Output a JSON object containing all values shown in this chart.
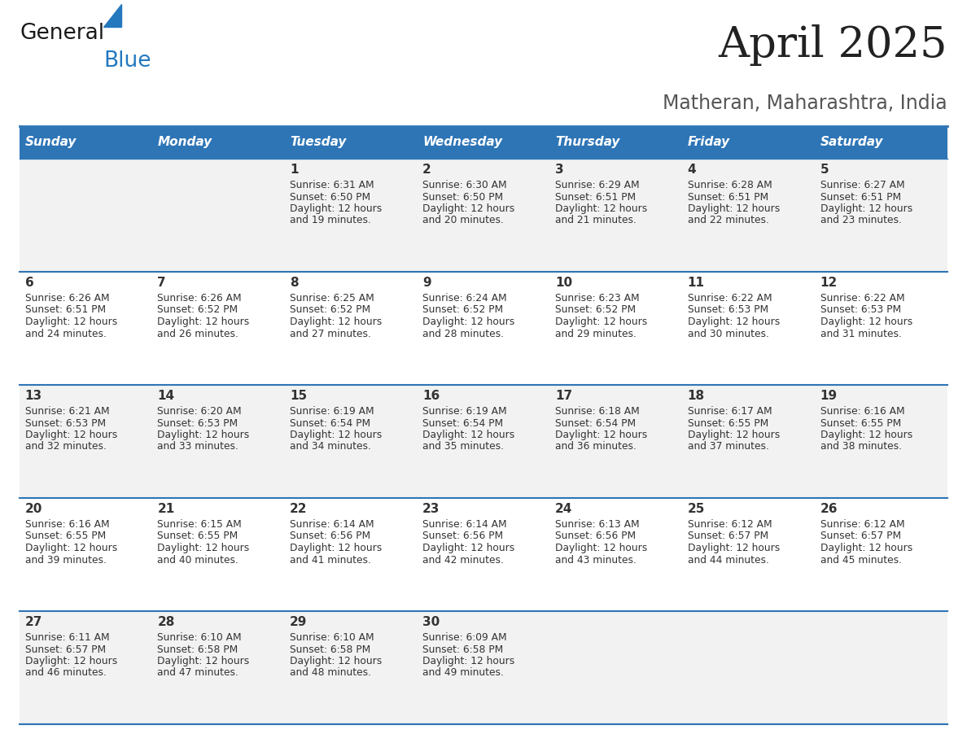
{
  "title": "April 2025",
  "subtitle": "Matheran, Maharashtra, India",
  "days_of_week": [
    "Sunday",
    "Monday",
    "Tuesday",
    "Wednesday",
    "Thursday",
    "Friday",
    "Saturday"
  ],
  "header_bg": "#2E75B6",
  "header_text": "#FFFFFF",
  "row_bg_odd": "#F2F2F2",
  "row_bg_even": "#FFFFFF",
  "cell_border_color": "#2E75B6",
  "text_color": "#333333",
  "title_color": "#222222",
  "subtitle_color": "#555555",
  "logo_text_color": "#1a1a1a",
  "logo_blue_color": "#2478BE",
  "calendar_data": [
    [
      {
        "day": "",
        "sunrise": "",
        "sunset": "",
        "daylight_min": 0
      },
      {
        "day": "",
        "sunrise": "",
        "sunset": "",
        "daylight_min": 0
      },
      {
        "day": "1",
        "sunrise": "6:31 AM",
        "sunset": "6:50 PM",
        "daylight_min": 19
      },
      {
        "day": "2",
        "sunrise": "6:30 AM",
        "sunset": "6:50 PM",
        "daylight_min": 20
      },
      {
        "day": "3",
        "sunrise": "6:29 AM",
        "sunset": "6:51 PM",
        "daylight_min": 21
      },
      {
        "day": "4",
        "sunrise": "6:28 AM",
        "sunset": "6:51 PM",
        "daylight_min": 22
      },
      {
        "day": "5",
        "sunrise": "6:27 AM",
        "sunset": "6:51 PM",
        "daylight_min": 23
      }
    ],
    [
      {
        "day": "6",
        "sunrise": "6:26 AM",
        "sunset": "6:51 PM",
        "daylight_min": 24
      },
      {
        "day": "7",
        "sunrise": "6:26 AM",
        "sunset": "6:52 PM",
        "daylight_min": 26
      },
      {
        "day": "8",
        "sunrise": "6:25 AM",
        "sunset": "6:52 PM",
        "daylight_min": 27
      },
      {
        "day": "9",
        "sunrise": "6:24 AM",
        "sunset": "6:52 PM",
        "daylight_min": 28
      },
      {
        "day": "10",
        "sunrise": "6:23 AM",
        "sunset": "6:52 PM",
        "daylight_min": 29
      },
      {
        "day": "11",
        "sunrise": "6:22 AM",
        "sunset": "6:53 PM",
        "daylight_min": 30
      },
      {
        "day": "12",
        "sunrise": "6:22 AM",
        "sunset": "6:53 PM",
        "daylight_min": 31
      }
    ],
    [
      {
        "day": "13",
        "sunrise": "6:21 AM",
        "sunset": "6:53 PM",
        "daylight_min": 32
      },
      {
        "day": "14",
        "sunrise": "6:20 AM",
        "sunset": "6:53 PM",
        "daylight_min": 33
      },
      {
        "day": "15",
        "sunrise": "6:19 AM",
        "sunset": "6:54 PM",
        "daylight_min": 34
      },
      {
        "day": "16",
        "sunrise": "6:19 AM",
        "sunset": "6:54 PM",
        "daylight_min": 35
      },
      {
        "day": "17",
        "sunrise": "6:18 AM",
        "sunset": "6:54 PM",
        "daylight_min": 36
      },
      {
        "day": "18",
        "sunrise": "6:17 AM",
        "sunset": "6:55 PM",
        "daylight_min": 37
      },
      {
        "day": "19",
        "sunrise": "6:16 AM",
        "sunset": "6:55 PM",
        "daylight_min": 38
      }
    ],
    [
      {
        "day": "20",
        "sunrise": "6:16 AM",
        "sunset": "6:55 PM",
        "daylight_min": 39
      },
      {
        "day": "21",
        "sunrise": "6:15 AM",
        "sunset": "6:55 PM",
        "daylight_min": 40
      },
      {
        "day": "22",
        "sunrise": "6:14 AM",
        "sunset": "6:56 PM",
        "daylight_min": 41
      },
      {
        "day": "23",
        "sunrise": "6:14 AM",
        "sunset": "6:56 PM",
        "daylight_min": 42
      },
      {
        "day": "24",
        "sunrise": "6:13 AM",
        "sunset": "6:56 PM",
        "daylight_min": 43
      },
      {
        "day": "25",
        "sunrise": "6:12 AM",
        "sunset": "6:57 PM",
        "daylight_min": 44
      },
      {
        "day": "26",
        "sunrise": "6:12 AM",
        "sunset": "6:57 PM",
        "daylight_min": 45
      }
    ],
    [
      {
        "day": "27",
        "sunrise": "6:11 AM",
        "sunset": "6:57 PM",
        "daylight_min": 46
      },
      {
        "day": "28",
        "sunrise": "6:10 AM",
        "sunset": "6:58 PM",
        "daylight_min": 47
      },
      {
        "day": "29",
        "sunrise": "6:10 AM",
        "sunset": "6:58 PM",
        "daylight_min": 48
      },
      {
        "day": "30",
        "sunrise": "6:09 AM",
        "sunset": "6:58 PM",
        "daylight_min": 49
      },
      {
        "day": "",
        "sunrise": "",
        "sunset": "",
        "daylight_min": 0
      },
      {
        "day": "",
        "sunrise": "",
        "sunset": "",
        "daylight_min": 0
      },
      {
        "day": "",
        "sunrise": "",
        "sunset": "",
        "daylight_min": 0
      }
    ]
  ]
}
